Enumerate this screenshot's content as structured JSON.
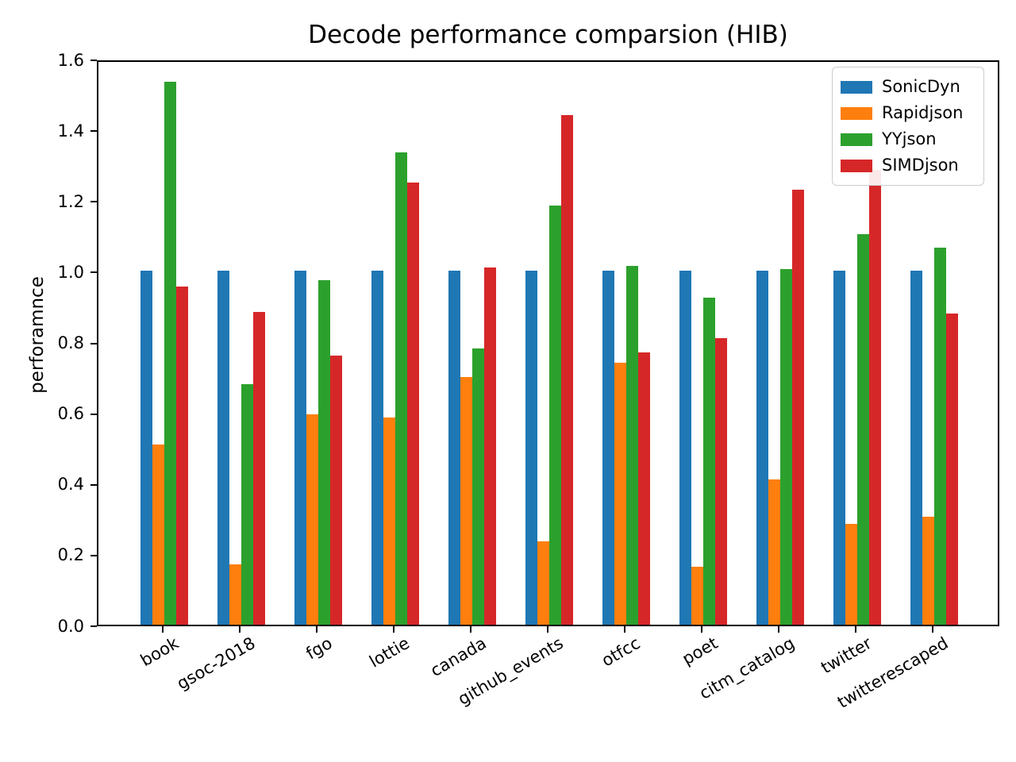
{
  "chart_data": {
    "type": "bar",
    "title": "Decode performance comparsion (HIB)",
    "ylabel": "perforamnce",
    "xlabel": "",
    "ylim": [
      0.0,
      1.6
    ],
    "yticks": [
      "0.0",
      "0.2",
      "0.4",
      "0.6",
      "0.8",
      "1.0",
      "1.2",
      "1.4",
      "1.6"
    ],
    "grid": false,
    "legend_position": "upper right",
    "categories": [
      "book",
      "gsoc-2018",
      "fgo",
      "lottie",
      "canada",
      "github_events",
      "otfcc",
      "poet",
      "citm_catalog",
      "twitter",
      "twitterescaped"
    ],
    "series": [
      {
        "name": "SonicDyn",
        "color": "#1f77b4",
        "values": [
          1.0,
          1.0,
          1.0,
          1.0,
          1.0,
          1.0,
          1.0,
          1.0,
          1.0,
          1.0,
          1.0
        ]
      },
      {
        "name": "Rapidjson",
        "color": "#ff7f0e",
        "values": [
          0.51,
          0.17,
          0.595,
          0.585,
          0.7,
          0.235,
          0.74,
          0.165,
          0.41,
          0.285,
          0.305
        ]
      },
      {
        "name": "YYjson",
        "color": "#2ca02c",
        "values": [
          1.535,
          0.68,
          0.975,
          1.335,
          0.78,
          1.185,
          1.015,
          0.925,
          1.005,
          1.105,
          1.065
        ]
      },
      {
        "name": "SIMDjson",
        "color": "#d62728",
        "values": [
          0.955,
          0.885,
          0.76,
          1.25,
          1.01,
          1.44,
          0.77,
          0.81,
          1.23,
          1.285,
          0.88
        ]
      }
    ]
  }
}
